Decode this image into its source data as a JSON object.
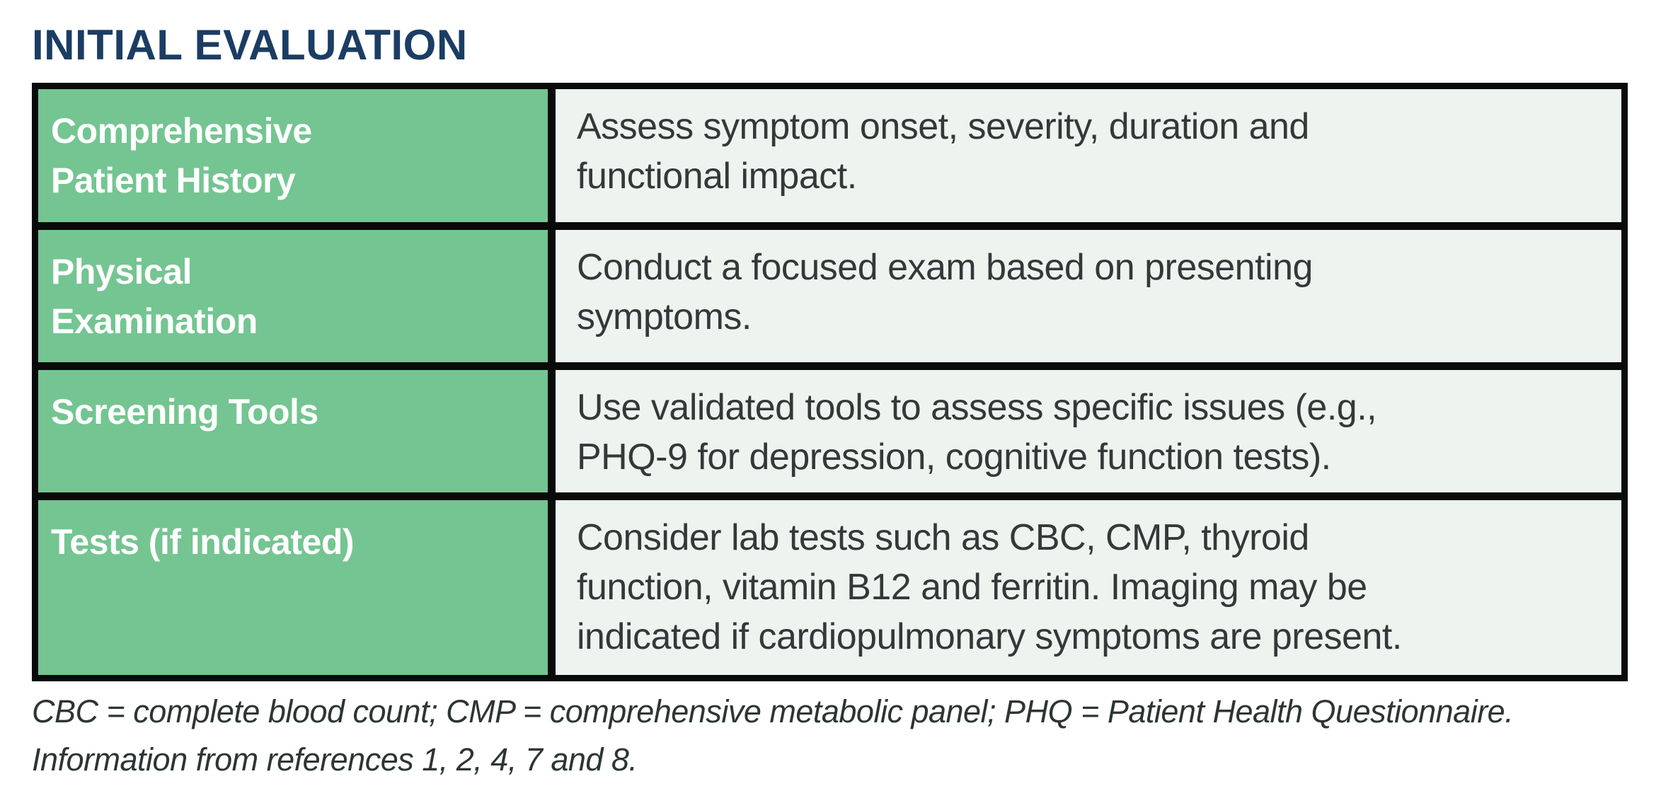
{
  "page": {
    "title": "INITIAL EVALUATION"
  },
  "colors": {
    "title_navy": "#1b3d63",
    "header_cell_green": "#74c591",
    "description_cell_bg": "#edf3ee",
    "table_border_black": "#0a0a0a",
    "header_text_white": "#ffffff",
    "description_text": "#333838",
    "footnote_text": "#2e3434"
  },
  "table": {
    "rows": [
      {
        "header": "Comprehensive\nPatient History",
        "description": "Assess symptom onset, severity, duration and\nfunctional impact."
      },
      {
        "header": "Physical\nExamination",
        "description": "Conduct a focused exam based on presenting\nsymptoms."
      },
      {
        "header": "Screening Tools",
        "description": "Use validated tools to assess specific issues (e.g.,\nPHQ-9 for depression, cognitive function tests)."
      },
      {
        "header": "Tests (if indicated)",
        "description": "Consider lab tests such as CBC, CMP, thyroid\nfunction, vitamin B12 and ferritin. Imaging may be\nindicated if cardiopulmonary symptoms are present."
      }
    ]
  },
  "footnotes": {
    "abbreviations": "CBC = complete blood count; CMP = comprehensive metabolic panel; PHQ = Patient Health Questionnaire.",
    "references": "Information from references 1, 2, 4, 7 and 8."
  }
}
